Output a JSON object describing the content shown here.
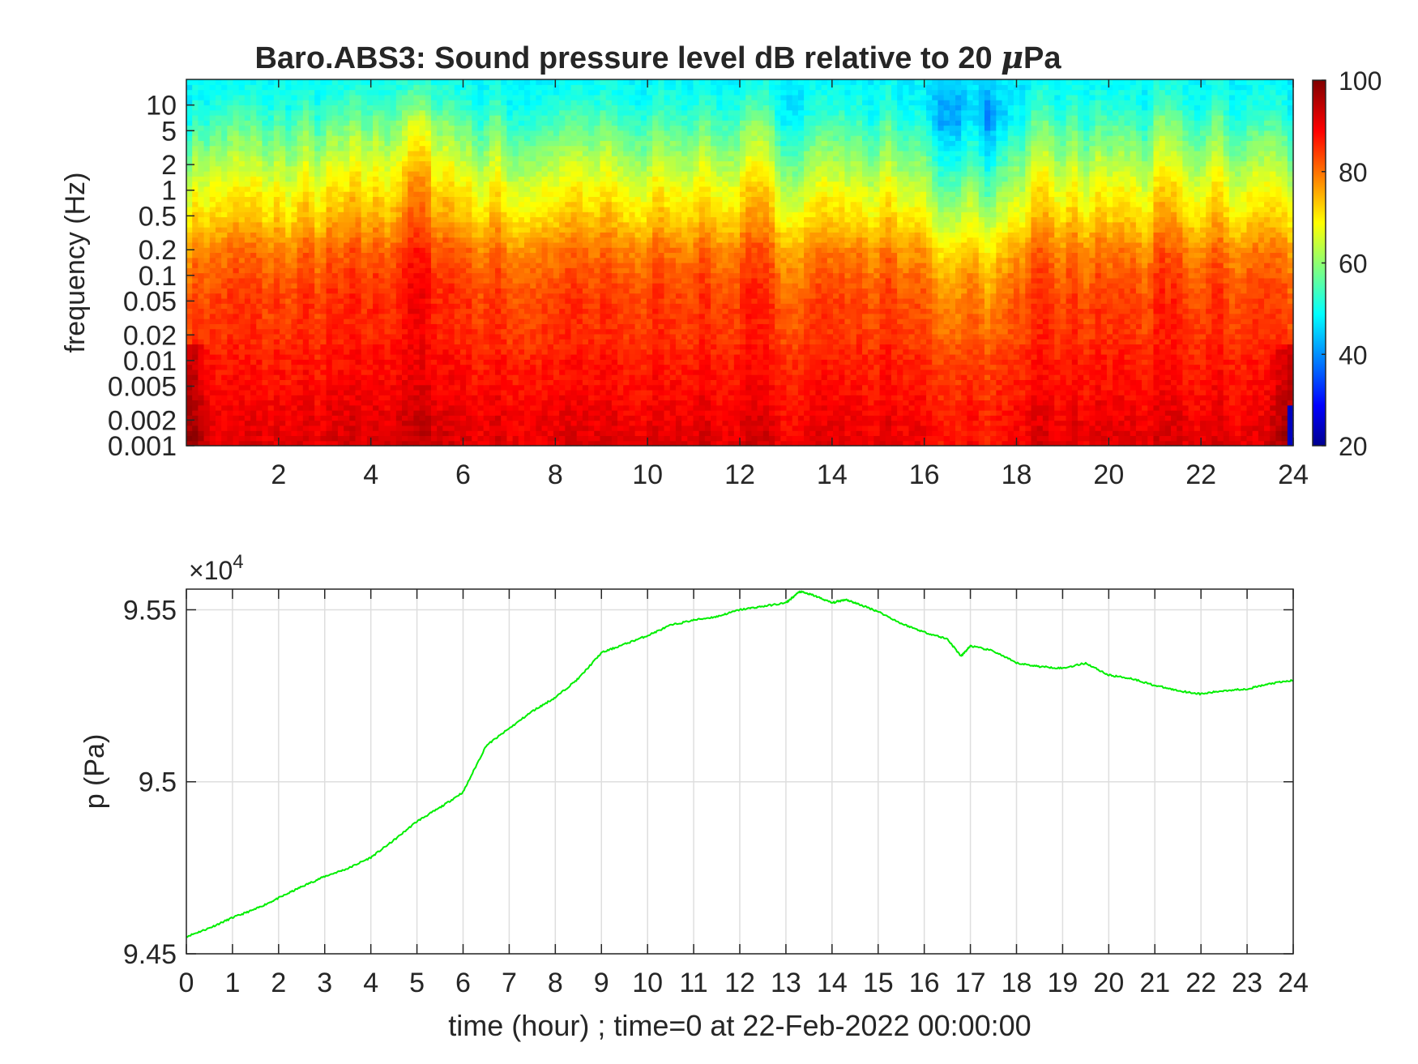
{
  "chart_data": [
    {
      "type": "heatmap",
      "title_prefix": "Baro.ABS3: Sound pressure level dB relative to 20 ",
      "title_mu": "μ",
      "title_suffix": "Pa",
      "xlabel": "",
      "ylabel": "frequency (Hz)",
      "x_range": [
        0,
        24
      ],
      "x_ticks": [
        2,
        4,
        6,
        8,
        10,
        12,
        14,
        16,
        18,
        20,
        22,
        24
      ],
      "y_scale": "log",
      "y_range": [
        0.001,
        20
      ],
      "y_ticks": [
        0.001,
        0.002,
        0.005,
        0.01,
        0.02,
        0.05,
        0.1,
        0.2,
        0.5,
        1,
        2,
        5,
        10
      ],
      "y_tick_labels": [
        "0.001",
        "0.002",
        "0.005",
        "0.01",
        "0.02",
        "0.05",
        "0.1",
        "0.2",
        "0.5",
        "1",
        "2",
        "5",
        "10"
      ],
      "colormap": "jet",
      "colorbar_range": [
        20,
        100
      ],
      "colorbar_ticks": [
        20,
        40,
        60,
        80,
        100
      ],
      "level_profile": {
        "freq_hz": [
          0.001,
          0.002,
          0.005,
          0.01,
          0.02,
          0.05,
          0.1,
          0.2,
          0.5,
          1,
          2,
          5,
          10,
          20
        ],
        "level_db": [
          92,
          91,
          89,
          88,
          86,
          85,
          83,
          80,
          73,
          69,
          64,
          57,
          52,
          50
        ]
      }
    },
    {
      "type": "line",
      "xlabel": "time (hour) ; time=0 at 22-Feb-2022 00:00:00",
      "ylabel": "p (Pa)",
      "x_range": [
        0,
        24
      ],
      "x_ticks": [
        0,
        1,
        2,
        3,
        4,
        5,
        6,
        7,
        8,
        9,
        10,
        11,
        12,
        13,
        14,
        15,
        16,
        17,
        18,
        19,
        20,
        21,
        22,
        23,
        24
      ],
      "y_range": [
        94500,
        95560
      ],
      "y_ticks": [
        94500,
        95000,
        95500
      ],
      "y_tick_labels": [
        "9.45",
        "9.5",
        "9.55"
      ],
      "y_multiplier_base": "×10",
      "y_multiplier_exp": "4",
      "grid": true,
      "color": "#00ee00",
      "series": [
        {
          "x": [
            0,
            0.5,
            1,
            1.5,
            2,
            2.5,
            3,
            3.5,
            4,
            4.5,
            5,
            5.5,
            6,
            6.5,
            7,
            7.5,
            8,
            8.5,
            9,
            9.5,
            10,
            10.5,
            11,
            11.5,
            12,
            12.5,
            13,
            13.3,
            13.6,
            14,
            14.3,
            14.6,
            15,
            15.5,
            16,
            16.5,
            16.8,
            17,
            17.5,
            18,
            18.5,
            19,
            19.5,
            20,
            20.5,
            21,
            21.5,
            22,
            22.5,
            23,
            23.5,
            24
          ],
          "y": [
            94550,
            94575,
            94605,
            94630,
            94662,
            94695,
            94725,
            94748,
            94780,
            94830,
            94885,
            94925,
            94970,
            95105,
            95155,
            95205,
            95245,
            95300,
            95375,
            95400,
            95425,
            95455,
            95470,
            95480,
            95500,
            95510,
            95520,
            95553,
            95542,
            95520,
            95530,
            95515,
            95495,
            95460,
            95435,
            95415,
            95365,
            95395,
            95380,
            95345,
            95335,
            95330,
            95345,
            95310,
            95300,
            95280,
            95265,
            95255,
            95265,
            95270,
            95285,
            95295
          ]
        }
      ]
    }
  ]
}
